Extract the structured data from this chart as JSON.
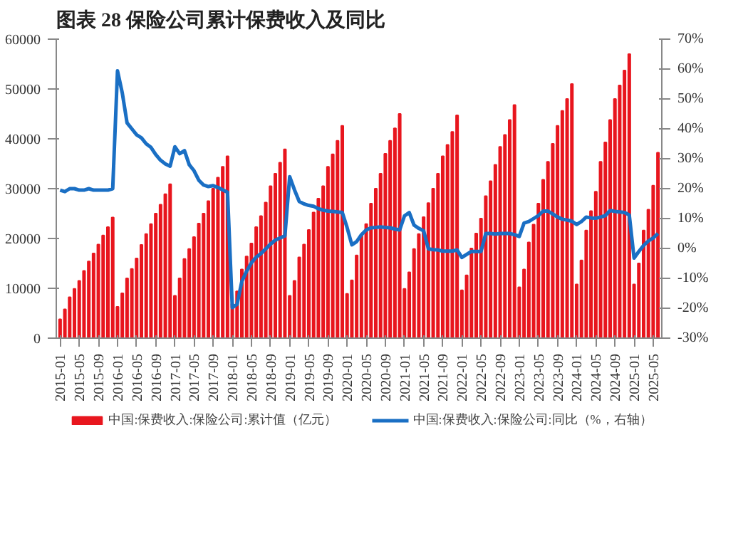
{
  "chart_data": {
    "type": "bar",
    "title": "图表 28    保险公司累计保费收入及同比",
    "categories": [
      "2015-01",
      null,
      null,
      null,
      "2015-05",
      null,
      null,
      null,
      "2015-09",
      null,
      null,
      null,
      "2016-01",
      null,
      null,
      null,
      "2016-05",
      null,
      null,
      null,
      "2016-09",
      null,
      null,
      null,
      "2017-01",
      null,
      null,
      null,
      "2017-05",
      null,
      null,
      null,
      "2017-09",
      null,
      null,
      null,
      "2018-01",
      null,
      null,
      null,
      "2018-05",
      null,
      null,
      null,
      "2018-09",
      null,
      null,
      null,
      "2019-01",
      null,
      null,
      null,
      "2019-05",
      null,
      null,
      null,
      "2019-09",
      null,
      null,
      null,
      "2020-01",
      null,
      null,
      null,
      "2020-05",
      null,
      null,
      null,
      "2020-09",
      null,
      null,
      null,
      "2021-01",
      null,
      null,
      null,
      "2021-05",
      null,
      null,
      null,
      "2021-09",
      null,
      null,
      null,
      "2022-01",
      null,
      null,
      null,
      "2022-05",
      null,
      null,
      null,
      "2022-09",
      null,
      null,
      null,
      "2023-01",
      null,
      null,
      null,
      "2023-05",
      null,
      null,
      null,
      "2023-09",
      null,
      null,
      null,
      "2024-01",
      null,
      null,
      null,
      "2024-05",
      null,
      null,
      null,
      "2024-09",
      null,
      null,
      null,
      "2025-01",
      null,
      null,
      null,
      "2025-05",
      null
    ],
    "series": [
      {
        "name": "中国:保费收入:保险公司:累计值（亿元）",
        "color": "#e8161e",
        "values": [
          3800,
          5800,
          8200,
          9900,
          11500,
          13500,
          15400,
          17000,
          18800,
          20600,
          22300,
          24200,
          6300,
          9000,
          12000,
          13900,
          16000,
          18700,
          20900,
          22900,
          25000,
          26800,
          28900,
          30900,
          8500,
          12000,
          15900,
          17900,
          20300,
          23000,
          25000,
          27500,
          30000,
          32200,
          34400,
          36500,
          6900,
          9400,
          13800,
          16400,
          19000,
          22300,
          24500,
          27200,
          30500,
          33000,
          35200,
          37900,
          8500,
          11500,
          16200,
          18800,
          21700,
          25200,
          28000,
          30500,
          34400,
          36900,
          39600,
          42600,
          8900,
          11600,
          16600,
          20700,
          22900,
          27000,
          30000,
          33000,
          37000,
          39600,
          42100,
          45000,
          9900,
          13200,
          17900,
          20900,
          24300,
          27100,
          30000,
          33000,
          36500,
          38800,
          41400,
          44700,
          9600,
          12600,
          18000,
          21000,
          24000,
          28500,
          31500,
          34800,
          38400,
          40800,
          43800,
          46800,
          10200,
          13800,
          19200,
          22800,
          27000,
          31800,
          35400,
          39000,
          42600,
          45600,
          48000,
          51000,
          10800,
          15600,
          21600,
          25500,
          29400,
          35400,
          39300,
          43800,
          48000,
          50700,
          53700,
          57000,
          10800,
          15000,
          21600,
          25800,
          30600,
          37200
        ]
      },
      {
        "name": "中国:保费收入:保险公司:同比（%，右轴）",
        "type": "line",
        "axis": "y2",
        "color": "#1a6fc4",
        "values": [
          19.5,
          19,
          20,
          20,
          19.5,
          19.5,
          20,
          19.5,
          19.5,
          19.5,
          19.5,
          20,
          59.4,
          52,
          42,
          40,
          38,
          37,
          35,
          33.8,
          31.4,
          29.5,
          28.3,
          27.5,
          34,
          31.7,
          32.7,
          28,
          26,
          22.8,
          21.2,
          20.7,
          21,
          20.4,
          19.6,
          18.8,
          -19.8,
          -18.7,
          -11,
          -7.6,
          -4.8,
          -2.9,
          -1.7,
          -0.1,
          1.5,
          2.8,
          3.5,
          4.2,
          24,
          19.6,
          15.7,
          14.9,
          14.4,
          14.1,
          13.3,
          12.8,
          12.5,
          12.4,
          12.2,
          12,
          7,
          1.2,
          2.3,
          4.6,
          6.2,
          6.9,
          7,
          7.2,
          7,
          6.9,
          6.5,
          6.2,
          10.9,
          12,
          7.8,
          6.7,
          5.9,
          -0.1,
          -0.4,
          -0.5,
          -0.9,
          -0.9,
          -0.9,
          -0.5,
          -3,
          -2,
          -1,
          -1,
          -1,
          5,
          5,
          4.8,
          5,
          5,
          5,
          4.6,
          4,
          8.5,
          9,
          10,
          11,
          12.5,
          12.5,
          11.5,
          10.5,
          9.8,
          9.5,
          9.1,
          8,
          9,
          10.5,
          10.2,
          10.1,
          10.5,
          11,
          12.7,
          12.4,
          12.2,
          12,
          11.2,
          -3.2,
          -1,
          1,
          2.5,
          3.5,
          5
        ]
      }
    ],
    "ylim": [
      0,
      60000
    ],
    "yticks": [
      0,
      10000,
      20000,
      30000,
      40000,
      50000,
      60000
    ],
    "y2lim": [
      -30,
      70
    ],
    "y2ticks": [
      {
        "value": -30,
        "label": "-30%"
      },
      {
        "value": -20,
        "label": "-20%"
      },
      {
        "value": -10,
        "label": "-10%"
      },
      {
        "value": 0,
        "label": "0%"
      },
      {
        "value": 10,
        "label": "10%"
      },
      {
        "value": 20,
        "label": "20%"
      },
      {
        "value": 30,
        "label": "30%"
      },
      {
        "value": 40,
        "label": "40%"
      },
      {
        "value": 50,
        "label": "50%"
      },
      {
        "value": 60,
        "label": "60%"
      },
      {
        "value": 70,
        "label": "70%"
      }
    ],
    "legend": "bottom",
    "grid": false
  }
}
